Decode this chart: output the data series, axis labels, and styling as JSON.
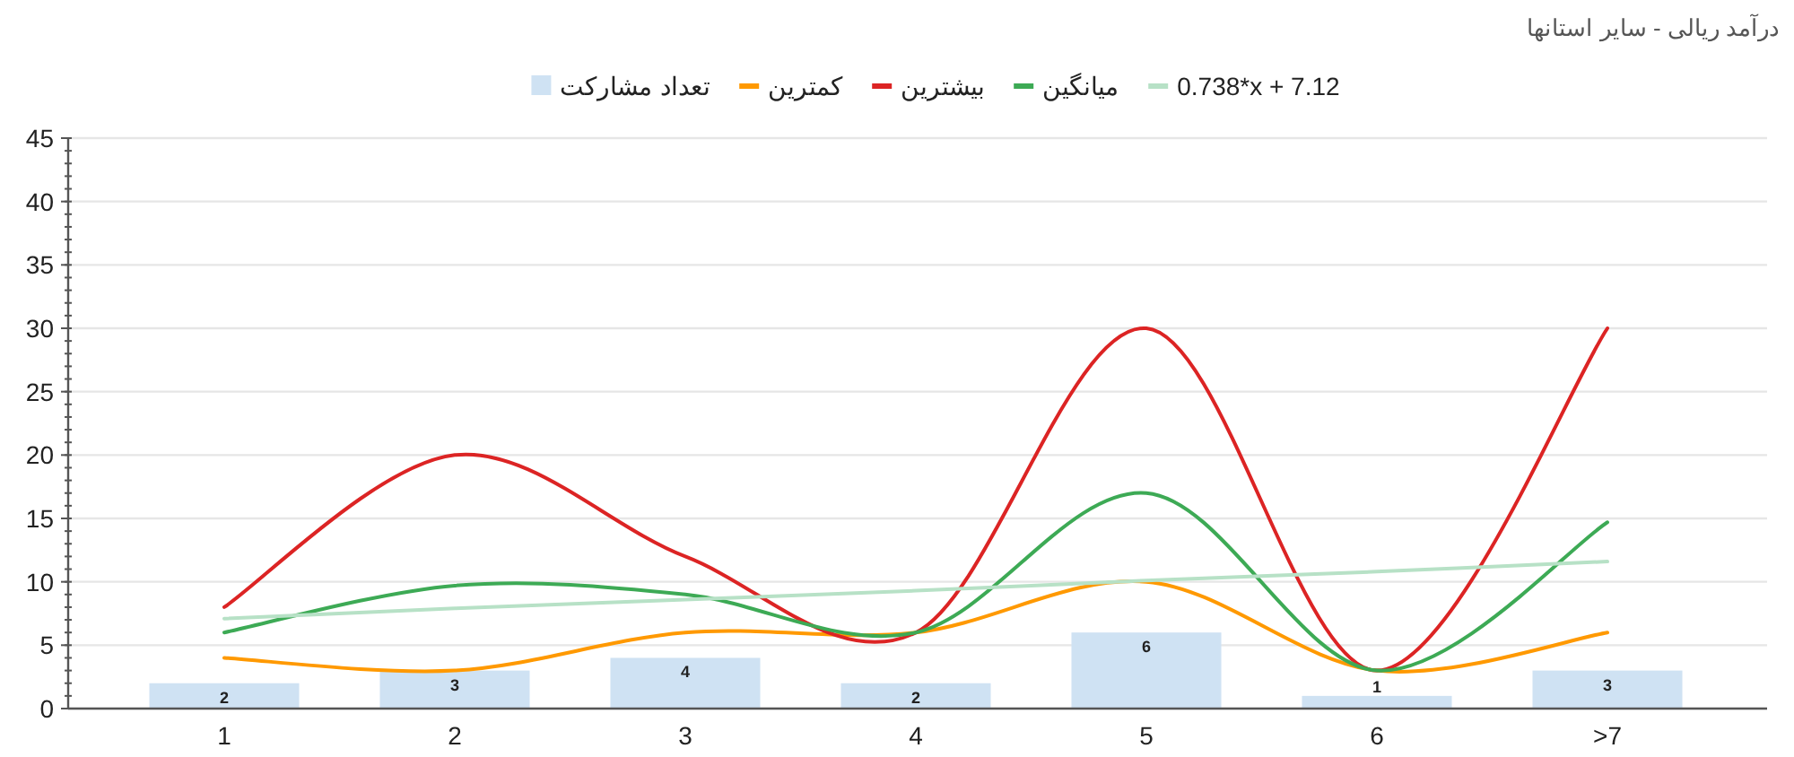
{
  "chart_data": {
    "type": "line",
    "title": "درآمد ریالی - سایر استانها",
    "categories": [
      "1",
      "2",
      "3",
      "4",
      "5",
      "6",
      ">7"
    ],
    "series": [
      {
        "name": "تعداد مشارکت",
        "type": "bar",
        "color": "#cfe2f3",
        "values": [
          2,
          3,
          4,
          2,
          6,
          1,
          3
        ],
        "value_labels": [
          "2",
          "3",
          "4",
          "2",
          "6",
          "1",
          "3"
        ]
      },
      {
        "name": "کمترین",
        "color": "#ff9900",
        "values": [
          4,
          3,
          6,
          6,
          10,
          3,
          6
        ]
      },
      {
        "name": "بیشترین",
        "color": "#dc2424",
        "values": [
          8,
          20,
          12,
          6,
          30,
          3,
          30
        ]
      },
      {
        "name": "میانگین",
        "color": "#3daa55",
        "values": [
          6,
          9.7,
          9,
          6,
          17,
          3,
          14.7
        ]
      },
      {
        "name": "0.738*x + 7.12",
        "color": "#b7e1c6",
        "values": [
          7.1,
          7.9,
          8.6,
          9.3,
          10.1,
          10.8,
          11.6
        ]
      }
    ],
    "ylim": [
      0,
      45
    ],
    "yticks": [
      0,
      5,
      10,
      15,
      20,
      25,
      30,
      35,
      40,
      45
    ],
    "grid": "y",
    "legend": "top"
  }
}
